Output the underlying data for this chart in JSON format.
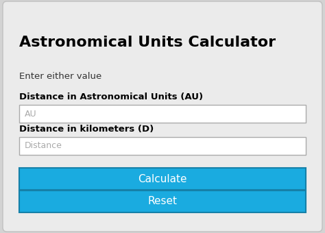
{
  "title": "Astronomical Units Calculator",
  "subtitle": "Enter either value",
  "label1": "Distance in Astronomical Units (AU)",
  "placeholder1": "AU",
  "label2": "Distance in kilometers (D)",
  "placeholder2": "Distance",
  "btn1": "Calculate",
  "btn2": "Reset",
  "bg_outer": "#d3d3d3",
  "card_color": "#ebebeb",
  "input_bg": "#ffffff",
  "input_border": "#aaaaaa",
  "btn_color": "#1aabe0",
  "btn_border": "#1580a8",
  "btn_text_color": "#ffffff",
  "title_color": "#000000",
  "label_color": "#000000",
  "placeholder_color": "#aaaaaa",
  "subtitle_color": "#333333",
  "figsize": [
    4.74,
    3.4
  ],
  "dpi": 100
}
